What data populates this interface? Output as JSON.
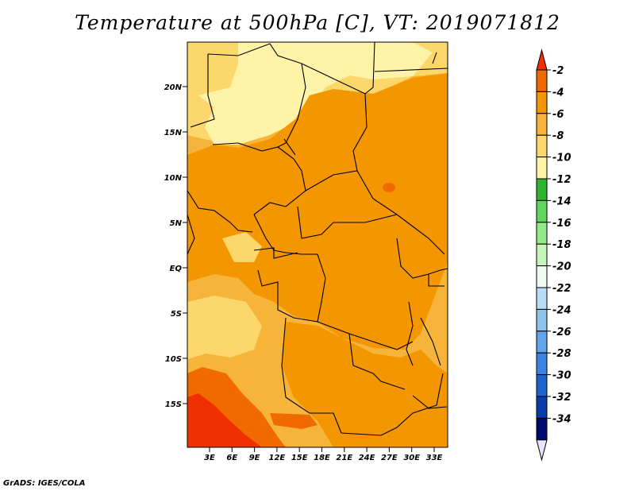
{
  "title": "Temperature at 500hPa [C], VT: 2019071812",
  "footer": "GrADS: IGES/COLA",
  "map": {
    "lat_labels": [
      "20N",
      "15N",
      "10N",
      "5N",
      "EQ",
      "5S",
      "10S",
      "15S"
    ],
    "lat_values": [
      20,
      15,
      10,
      5,
      0,
      -5,
      -10,
      -15
    ],
    "lon_labels": [
      "3E",
      "6E",
      "9E",
      "12E",
      "15E",
      "18E",
      "21E",
      "24E",
      "27E",
      "30E",
      "33E"
    ],
    "lon_values": [
      3,
      6,
      9,
      12,
      15,
      18,
      21,
      24,
      27,
      30,
      33
    ]
  },
  "colorbar": {
    "labels": [
      "-2",
      "-4",
      "-6",
      "-8",
      "-10",
      "-12",
      "-14",
      "-16",
      "-18",
      "-20",
      "-22",
      "-24",
      "-26",
      "-28",
      "-30",
      "-32",
      "-34"
    ],
    "colors": [
      "#f03000",
      "#f06a00",
      "#f39600",
      "#f7b43a",
      "#fcd76b",
      "#fff3a8",
      "#2eb52e",
      "#5fd75f",
      "#95ea88",
      "#c6f5b9",
      "#eefcef",
      "#b8dcf6",
      "#8ec3f0",
      "#62a4eb",
      "#3d83e3",
      "#1e62d0",
      "#0a3dac",
      "#000a6e",
      "#e6e6fc"
    ]
  },
  "colors": {
    "lt10": "#fff3a8",
    "c8_10": "#fcd76b",
    "c6_8": "#f7b43a",
    "c4_6": "#f39600",
    "c2_4": "#f06a00",
    "border": "#000000"
  }
}
